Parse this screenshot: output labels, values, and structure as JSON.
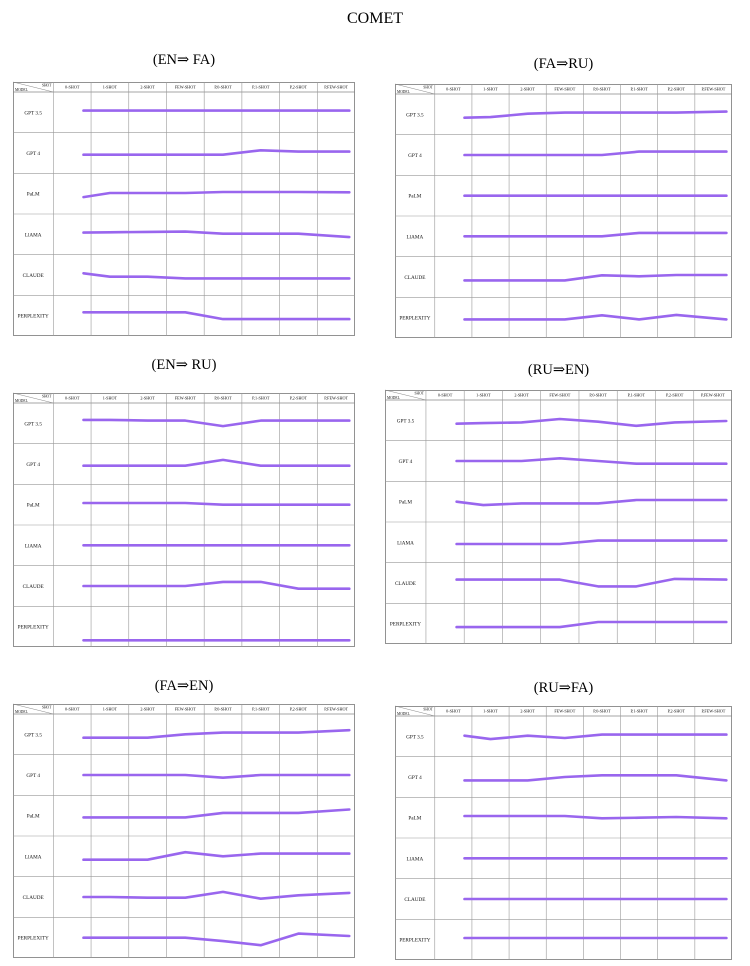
{
  "title": "COMET",
  "header": {
    "corner_top": "SHOT",
    "corner_bottom": "MODEL"
  },
  "columns": [
    "0-SHOT",
    "1-SHOT",
    "2-SHOT",
    "FEW-SHOT",
    "P,0-SHOT",
    "P,1-SHOT",
    "P,2-SHOT",
    "P,FEW-SHOT"
  ],
  "models": [
    "GPT 3.5",
    "GPT 4",
    "PaLM",
    "LlAMA",
    "CLAUDE",
    "PERPLEXITY"
  ],
  "line_color": "#9966ee",
  "chart_data": [
    {
      "type": "line",
      "title": "(EN⇒ FA)",
      "series": [
        {
          "model": "GPT 3.5",
          "values": [
            0.55,
            0.55,
            0.55,
            0.55,
            0.55,
            0.55,
            0.55,
            0.55
          ]
        },
        {
          "model": "GPT 4",
          "values": [
            0.45,
            0.45,
            0.45,
            0.45,
            0.45,
            0.58,
            0.54,
            0.54
          ]
        },
        {
          "model": "PaLM",
          "values": [
            0.4,
            0.52,
            0.52,
            0.52,
            0.55,
            0.55,
            0.55,
            0.54
          ]
        },
        {
          "model": "LlAMA",
          "values": [
            0.55,
            0.56,
            0.57,
            0.58,
            0.52,
            0.52,
            0.52,
            0.42
          ]
        },
        {
          "model": "CLAUDE",
          "values": [
            0.55,
            0.45,
            0.45,
            0.4,
            0.4,
            0.4,
            0.4,
            0.4
          ]
        },
        {
          "model": "PERPLEXITY",
          "values": [
            0.6,
            0.6,
            0.6,
            0.6,
            0.4,
            0.4,
            0.4,
            0.4
          ]
        }
      ]
    },
    {
      "type": "line",
      "title": "(FA⇒RU)",
      "series": [
        {
          "model": "GPT 3.5",
          "values": [
            0.4,
            0.42,
            0.52,
            0.55,
            0.55,
            0.55,
            0.55,
            0.58
          ]
        },
        {
          "model": "GPT 4",
          "values": [
            0.5,
            0.5,
            0.5,
            0.5,
            0.5,
            0.6,
            0.6,
            0.6
          ]
        },
        {
          "model": "PaLM",
          "values": [
            0.5,
            0.5,
            0.5,
            0.5,
            0.5,
            0.5,
            0.5,
            0.5
          ]
        },
        {
          "model": "LlAMA",
          "values": [
            0.5,
            0.5,
            0.5,
            0.5,
            0.5,
            0.6,
            0.6,
            0.6
          ]
        },
        {
          "model": "CLAUDE",
          "values": [
            0.4,
            0.4,
            0.4,
            0.4,
            0.55,
            0.52,
            0.56,
            0.56
          ]
        },
        {
          "model": "PERPLEXITY",
          "values": [
            0.45,
            0.45,
            0.45,
            0.45,
            0.57,
            0.45,
            0.58,
            0.45
          ]
        }
      ]
    },
    {
      "type": "line",
      "title": "(EN⇒ RU)",
      "series": [
        {
          "model": "GPT 3.5",
          "values": [
            0.6,
            0.6,
            0.58,
            0.58,
            0.42,
            0.58,
            0.58,
            0.58
          ]
        },
        {
          "model": "GPT 4",
          "values": [
            0.45,
            0.45,
            0.45,
            0.45,
            0.62,
            0.45,
            0.45,
            0.45
          ]
        },
        {
          "model": "PaLM",
          "values": [
            0.55,
            0.55,
            0.55,
            0.55,
            0.5,
            0.5,
            0.5,
            0.5
          ]
        },
        {
          "model": "LlAMA",
          "values": [
            0.5,
            0.5,
            0.5,
            0.5,
            0.5,
            0.5,
            0.5,
            0.5
          ]
        },
        {
          "model": "CLAUDE",
          "values": [
            0.5,
            0.5,
            0.5,
            0.5,
            0.62,
            0.62,
            0.42,
            0.42
          ]
        },
        {
          "model": "PERPLEXITY",
          "values": [
            0.1,
            0.1,
            0.1,
            0.1,
            0.1,
            0.1,
            0.1,
            0.1
          ]
        }
      ]
    },
    {
      "type": "line",
      "title": "(RU⇒EN)",
      "series": [
        {
          "model": "GPT 3.5",
          "values": [
            0.4,
            0.42,
            0.44,
            0.54,
            0.46,
            0.34,
            0.44,
            0.48
          ]
        },
        {
          "model": "GPT 4",
          "values": [
            0.5,
            0.5,
            0.5,
            0.58,
            0.5,
            0.42,
            0.42,
            0.42
          ]
        },
        {
          "model": "PaLM",
          "values": [
            0.5,
            0.4,
            0.45,
            0.45,
            0.45,
            0.55,
            0.55,
            0.55
          ]
        },
        {
          "model": "LlAMA",
          "values": [
            0.45,
            0.45,
            0.45,
            0.45,
            0.55,
            0.55,
            0.55,
            0.55
          ]
        },
        {
          "model": "CLAUDE",
          "values": [
            0.6,
            0.6,
            0.6,
            0.6,
            0.4,
            0.4,
            0.62,
            0.6
          ]
        },
        {
          "model": "PERPLEXITY",
          "values": [
            0.4,
            0.4,
            0.4,
            0.4,
            0.55,
            0.55,
            0.55,
            0.55
          ]
        }
      ]
    },
    {
      "type": "line",
      "title": "(FA⇒EN)",
      "series": [
        {
          "model": "GPT 3.5",
          "values": [
            0.4,
            0.4,
            0.4,
            0.5,
            0.55,
            0.55,
            0.55,
            0.62
          ]
        },
        {
          "model": "GPT 4",
          "values": [
            0.5,
            0.5,
            0.5,
            0.5,
            0.42,
            0.5,
            0.5,
            0.5
          ]
        },
        {
          "model": "PaLM",
          "values": [
            0.45,
            0.45,
            0.45,
            0.45,
            0.58,
            0.58,
            0.58,
            0.68
          ]
        },
        {
          "model": "LlAMA",
          "values": [
            0.4,
            0.4,
            0.4,
            0.62,
            0.5,
            0.58,
            0.58,
            0.58
          ]
        },
        {
          "model": "CLAUDE",
          "values": [
            0.5,
            0.5,
            0.48,
            0.48,
            0.65,
            0.45,
            0.55,
            0.62
          ]
        },
        {
          "model": "PERPLEXITY",
          "values": [
            0.5,
            0.5,
            0.5,
            0.5,
            0.4,
            0.28,
            0.62,
            0.55
          ]
        }
      ]
    },
    {
      "type": "line",
      "title": "(RU⇒FA)",
      "series": [
        {
          "model": "GPT 3.5",
          "values": [
            0.52,
            0.42,
            0.52,
            0.45,
            0.55,
            0.55,
            0.55,
            0.55
          ]
        },
        {
          "model": "GPT 4",
          "values": [
            0.4,
            0.4,
            0.4,
            0.5,
            0.55,
            0.55,
            0.55,
            0.4
          ]
        },
        {
          "model": "PaLM",
          "values": [
            0.55,
            0.55,
            0.55,
            0.55,
            0.48,
            0.5,
            0.52,
            0.48
          ]
        },
        {
          "model": "LlAMA",
          "values": [
            0.5,
            0.5,
            0.5,
            0.5,
            0.5,
            0.5,
            0.5,
            0.5
          ]
        },
        {
          "model": "CLAUDE",
          "values": [
            0.5,
            0.5,
            0.5,
            0.5,
            0.5,
            0.5,
            0.5,
            0.5
          ]
        },
        {
          "model": "PERPLEXITY",
          "values": [
            0.55,
            0.55,
            0.55,
            0.55,
            0.55,
            0.55,
            0.55,
            0.55
          ]
        }
      ]
    }
  ]
}
